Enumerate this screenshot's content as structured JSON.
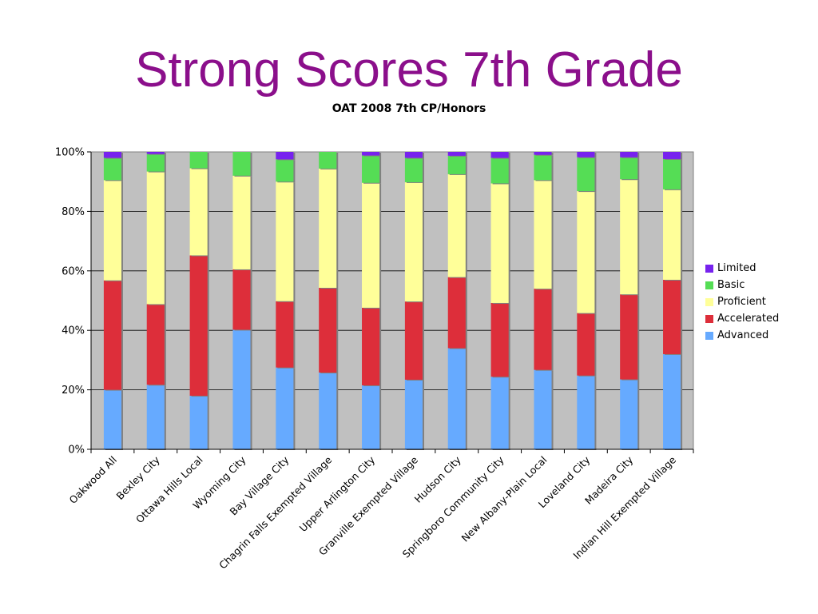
{
  "slide": {
    "title": "Strong Scores 7th Grade"
  },
  "chart_data": {
    "type": "bar",
    "stacked": true,
    "title": "OAT 2008 7th CP/Honors",
    "xlabel": "",
    "ylabel": "",
    "ylim": [
      0,
      100
    ],
    "y_ticks": [
      "0%",
      "20%",
      "40%",
      "60%",
      "80%",
      "100%"
    ],
    "grid": true,
    "legend_position": "right",
    "categories": [
      "Oakwood  All",
      "Bexley City",
      "Ottawa Hills Local",
      "Wyoming City",
      "Bay Village City",
      "Chagrin Falls Exempted Village",
      "Upper Arlington City",
      "Granville Exempted Village",
      "Hudson City",
      "Springboro Community City",
      "New Albany-Plain Local",
      "Loveland City",
      "Madeira City",
      "Indian Hill Exempted Village"
    ],
    "series": [
      {
        "name": "Advanced",
        "color": "#66aaff",
        "values": [
          20,
          21.7,
          18,
          40.2,
          27.5,
          25.8,
          21.5,
          23.4,
          34,
          24.4,
          26.7,
          24.8,
          23.5,
          32
        ]
      },
      {
        "name": "Accelerated",
        "color": "#dd2e3a",
        "values": [
          36.8,
          27.1,
          47.2,
          20.3,
          22.3,
          28.5,
          26.1,
          26.3,
          23.9,
          24.8,
          27.3,
          21,
          28.6,
          25
        ]
      },
      {
        "name": "Proficient",
        "color": "#ffff99",
        "values": [
          33.7,
          44.6,
          29.3,
          31.5,
          40.2,
          40.1,
          42,
          40.1,
          34.6,
          40.2,
          36.5,
          41,
          38.7,
          30.4
        ]
      },
      {
        "name": "Basic",
        "color": "#55dd55",
        "values": [
          7.5,
          5.9,
          5.5,
          8,
          7.5,
          5.6,
          9.2,
          8.2,
          6.2,
          8.6,
          8.5,
          11.4,
          7.4,
          10.2
        ]
      },
      {
        "name": "Limited",
        "color": "#7722ee",
        "values": [
          2,
          0.7,
          0,
          0,
          2.5,
          0,
          1.2,
          2,
          1.3,
          2,
          1,
          1.8,
          1.8,
          2.4
        ]
      }
    ]
  }
}
